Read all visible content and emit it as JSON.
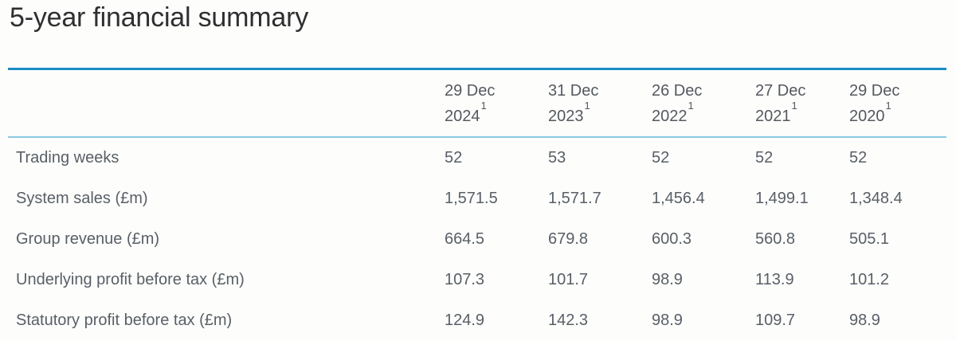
{
  "page": {
    "title": "5-year financial summary"
  },
  "chart_data": {
    "type": "table",
    "title": "5-year financial summary",
    "columns": [
      {
        "day": "29 Dec",
        "year": "2024",
        "footnote": "1"
      },
      {
        "day": "31 Dec",
        "year": "2023",
        "footnote": "1"
      },
      {
        "day": "26 Dec",
        "year": "2022",
        "footnote": "1"
      },
      {
        "day": "27 Dec",
        "year": "2021",
        "footnote": "1"
      },
      {
        "day": "29 Dec",
        "year": "2020",
        "footnote": "1"
      }
    ],
    "rows": [
      {
        "label": "Trading weeks",
        "values": [
          "52",
          "53",
          "52",
          "52",
          "52"
        ]
      },
      {
        "label": "System sales (£m)",
        "values": [
          "1,571.5",
          "1,571.7",
          "1,456.4",
          "1,499.1",
          "1,348.4"
        ]
      },
      {
        "label": "Group revenue (£m)",
        "values": [
          "664.5",
          "679.8",
          "600.3",
          "560.8",
          "505.1"
        ]
      },
      {
        "label": "Underlying profit before tax (£m)",
        "values": [
          "107.3",
          "101.7",
          "98.9",
          "113.9",
          "101.2"
        ]
      },
      {
        "label": "Statutory profit before tax (£m)",
        "values": [
          "124.9",
          "142.3",
          "98.9",
          "109.7",
          "98.9"
        ]
      }
    ]
  },
  "colors": {
    "rule_primary": "#1b8cc4",
    "rule_secondary": "#8ccae4",
    "title_text": "#2f2f31",
    "header_text": "#54595f",
    "body_text": "#585f66"
  }
}
